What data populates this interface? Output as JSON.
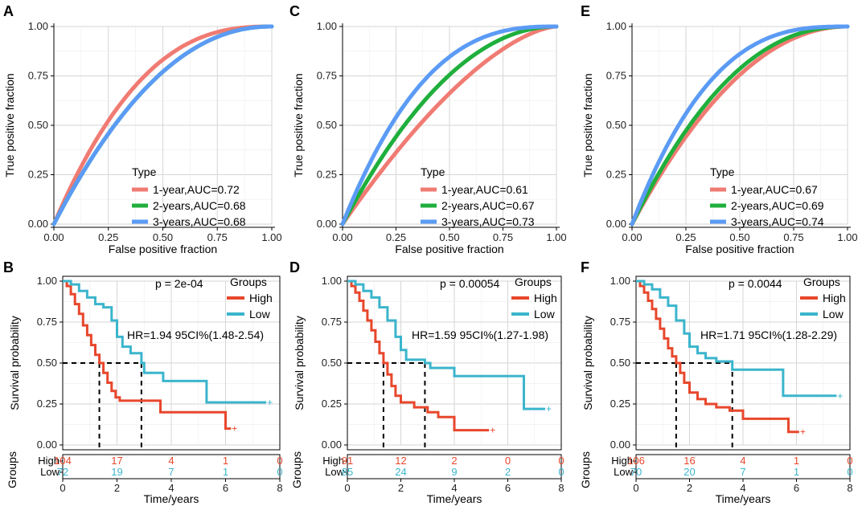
{
  "chart_data": [
    {
      "panel_label": "A",
      "type": "line",
      "subtype": "roc",
      "xlabel": "False positive fraction",
      "ylabel": "True positive fraction",
      "xlim": [
        0,
        1
      ],
      "ylim": [
        0,
        1
      ],
      "ticks": [
        "0.00",
        "0.25",
        "0.50",
        "0.75",
        "1.00"
      ],
      "legend_title": "Type",
      "legend_position": "bottom-right",
      "series": [
        {
          "name": "1-year,AUC=0.72",
          "auc": 0.72,
          "color": "#F07B73"
        },
        {
          "name": "2-years,AUC=0.68",
          "auc": 0.68,
          "color": "#1FAF3C"
        },
        {
          "name": "3-years,AUC=0.68",
          "auc": 0.68,
          "color": "#5B9BF5"
        }
      ]
    },
    {
      "panel_label": "C",
      "type": "line",
      "subtype": "roc",
      "xlabel": "False positive fraction",
      "ylabel": "True positive fraction",
      "xlim": [
        0,
        1
      ],
      "ylim": [
        0,
        1
      ],
      "ticks": [
        "0.00",
        "0.25",
        "0.50",
        "0.75",
        "1.00"
      ],
      "legend_title": "Type",
      "legend_position": "bottom-right",
      "series": [
        {
          "name": "1-year,AUC=0.61",
          "auc": 0.61,
          "color": "#F07B73"
        },
        {
          "name": "2-years,AUC=0.67",
          "auc": 0.67,
          "color": "#1FAF3C"
        },
        {
          "name": "3-years,AUC=0.73",
          "auc": 0.73,
          "color": "#5B9BF5"
        }
      ]
    },
    {
      "panel_label": "E",
      "type": "line",
      "subtype": "roc",
      "xlabel": "False positive fraction",
      "ylabel": "True positive fraction",
      "xlim": [
        0,
        1
      ],
      "ylim": [
        0,
        1
      ],
      "ticks": [
        "0.00",
        "0.25",
        "0.50",
        "0.75",
        "1.00"
      ],
      "legend_title": "Type",
      "legend_position": "bottom-right",
      "series": [
        {
          "name": "1-year,AUC=0.67",
          "auc": 0.67,
          "color": "#F07B73"
        },
        {
          "name": "2-years,AUC=0.69",
          "auc": 0.69,
          "color": "#1FAF3C"
        },
        {
          "name": "3-years,AUC=0.74",
          "auc": 0.74,
          "color": "#5B9BF5"
        }
      ]
    },
    {
      "panel_label": "B",
      "type": "line",
      "subtype": "kaplan-meier",
      "xlabel": "Time/years",
      "ylabel": "Survival probability",
      "xlim": [
        0,
        8
      ],
      "ylim": [
        0,
        1
      ],
      "xticks": [
        "0",
        "2",
        "4",
        "6",
        "8"
      ],
      "yticks": [
        "0.00",
        "0.25",
        "0.50",
        "0.75",
        "1.00"
      ],
      "p_value": "p = 2e-04",
      "hr_text": "HR=1.94 95CI%(1.48-2.54)",
      "legend_title": "Groups",
      "legend_position": "top-right",
      "median": {
        "High": 1.35,
        "Low": 2.9
      },
      "series": [
        {
          "name": "High",
          "color": "#E8472C",
          "points": [
            [
              0,
              1
            ],
            [
              0.15,
              0.97
            ],
            [
              0.3,
              0.92
            ],
            [
              0.45,
              0.86
            ],
            [
              0.6,
              0.8
            ],
            [
              0.75,
              0.73
            ],
            [
              0.9,
              0.67
            ],
            [
              1.05,
              0.61
            ],
            [
              1.2,
              0.55
            ],
            [
              1.35,
              0.5
            ],
            [
              1.5,
              0.44
            ],
            [
              1.65,
              0.38
            ],
            [
              1.8,
              0.33
            ],
            [
              1.95,
              0.29
            ],
            [
              2.1,
              0.27
            ],
            [
              3.6,
              0.27
            ],
            [
              3.6,
              0.2
            ],
            [
              6,
              0.2
            ],
            [
              6,
              0.1
            ],
            [
              6.2,
              0.1
            ]
          ]
        },
        {
          "name": "Low",
          "color": "#3BB5CC",
          "points": [
            [
              0,
              1
            ],
            [
              0.3,
              0.98
            ],
            [
              0.6,
              0.94
            ],
            [
              0.9,
              0.9
            ],
            [
              1.2,
              0.86
            ],
            [
              1.5,
              0.84
            ],
            [
              1.8,
              0.76
            ],
            [
              2.0,
              0.66
            ],
            [
              2.2,
              0.6
            ],
            [
              2.5,
              0.56
            ],
            [
              2.9,
              0.5
            ],
            [
              3.0,
              0.44
            ],
            [
              3.7,
              0.44
            ],
            [
              3.7,
              0.39
            ],
            [
              5.3,
              0.39
            ],
            [
              5.3,
              0.26
            ],
            [
              7.5,
              0.26
            ]
          ]
        }
      ],
      "risk_table": {
        "label": "Groups",
        "rows": [
          {
            "group": "High",
            "color": "#E8472C",
            "values": [
              "104",
              "17",
              "4",
              "1",
              "0"
            ]
          },
          {
            "group": "Low",
            "color": "#3BB5CC",
            "values": [
              "72",
              "19",
              "7",
              "1",
              "0"
            ]
          }
        ]
      }
    },
    {
      "panel_label": "D",
      "type": "line",
      "subtype": "kaplan-meier",
      "xlabel": "Time/years",
      "ylabel": "Survival probability",
      "xlim": [
        0,
        8
      ],
      "ylim": [
        0,
        1
      ],
      "xticks": [
        "0",
        "2",
        "4",
        "6",
        "8"
      ],
      "yticks": [
        "0.00",
        "0.25",
        "0.50",
        "0.75",
        "1.00"
      ],
      "p_value": "p = 0.00054",
      "hr_text": "HR=1.59 95CI%(1.27-1.98)",
      "legend_title": "Groups",
      "legend_position": "top-right",
      "median": {
        "High": 1.35,
        "Low": 2.9
      },
      "series": [
        {
          "name": "High",
          "color": "#E8472C",
          "points": [
            [
              0,
              1
            ],
            [
              0.15,
              0.97
            ],
            [
              0.3,
              0.93
            ],
            [
              0.45,
              0.88
            ],
            [
              0.6,
              0.82
            ],
            [
              0.75,
              0.76
            ],
            [
              0.9,
              0.7
            ],
            [
              1.05,
              0.63
            ],
            [
              1.2,
              0.56
            ],
            [
              1.35,
              0.5
            ],
            [
              1.5,
              0.43
            ],
            [
              1.65,
              0.36
            ],
            [
              1.8,
              0.3
            ],
            [
              2.0,
              0.26
            ],
            [
              2.5,
              0.23
            ],
            [
              3.0,
              0.2
            ],
            [
              3.4,
              0.17
            ],
            [
              4.0,
              0.17
            ],
            [
              4.0,
              0.09
            ],
            [
              5.3,
              0.09
            ]
          ]
        },
        {
          "name": "Low",
          "color": "#3BB5CC",
          "points": [
            [
              0,
              1
            ],
            [
              0.3,
              0.98
            ],
            [
              0.6,
              0.94
            ],
            [
              0.9,
              0.9
            ],
            [
              1.2,
              0.84
            ],
            [
              1.5,
              0.76
            ],
            [
              1.8,
              0.66
            ],
            [
              2.0,
              0.58
            ],
            [
              2.2,
              0.52
            ],
            [
              2.9,
              0.5
            ],
            [
              3.1,
              0.47
            ],
            [
              4.0,
              0.47
            ],
            [
              4.0,
              0.42
            ],
            [
              6.6,
              0.42
            ],
            [
              6.6,
              0.22
            ],
            [
              7.4,
              0.22
            ]
          ]
        }
      ],
      "risk_table": {
        "label": "Groups",
        "rows": [
          {
            "group": "High",
            "color": "#E8472C",
            "values": [
              "91",
              "12",
              "2",
              "0",
              "0"
            ]
          },
          {
            "group": "Low",
            "color": "#3BB5CC",
            "values": [
              "85",
              "24",
              "9",
              "2",
              "0"
            ]
          }
        ]
      }
    },
    {
      "panel_label": "F",
      "type": "line",
      "subtype": "kaplan-meier",
      "xlabel": "Time/years",
      "ylabel": "Survival probability",
      "xlim": [
        0,
        8
      ],
      "ylim": [
        0,
        1
      ],
      "xticks": [
        "0",
        "2",
        "4",
        "6",
        "8"
      ],
      "yticks": [
        "0.00",
        "0.25",
        "0.50",
        "0.75",
        "1.00"
      ],
      "p_value": "p = 0.0044",
      "hr_text": "HR=1.71 95CI%(1.28-2.29)",
      "legend_title": "Groups",
      "legend_position": "top-right",
      "median": {
        "High": 1.5,
        "Low": 3.6
      },
      "series": [
        {
          "name": "High",
          "color": "#E8472C",
          "points": [
            [
              0,
              1
            ],
            [
              0.15,
              0.97
            ],
            [
              0.3,
              0.93
            ],
            [
              0.45,
              0.88
            ],
            [
              0.6,
              0.83
            ],
            [
              0.75,
              0.77
            ],
            [
              0.9,
              0.71
            ],
            [
              1.05,
              0.65
            ],
            [
              1.2,
              0.59
            ],
            [
              1.35,
              0.54
            ],
            [
              1.5,
              0.5
            ],
            [
              1.65,
              0.44
            ],
            [
              1.8,
              0.38
            ],
            [
              2.0,
              0.32
            ],
            [
              2.3,
              0.28
            ],
            [
              2.6,
              0.25
            ],
            [
              3.0,
              0.23
            ],
            [
              3.5,
              0.21
            ],
            [
              4.0,
              0.21
            ],
            [
              4.0,
              0.16
            ],
            [
              5.7,
              0.16
            ],
            [
              5.7,
              0.08
            ],
            [
              6.1,
              0.08
            ]
          ]
        },
        {
          "name": "Low",
          "color": "#3BB5CC",
          "points": [
            [
              0,
              1
            ],
            [
              0.3,
              0.98
            ],
            [
              0.6,
              0.95
            ],
            [
              0.9,
              0.9
            ],
            [
              1.2,
              0.85
            ],
            [
              1.5,
              0.76
            ],
            [
              1.8,
              0.68
            ],
            [
              2.0,
              0.6
            ],
            [
              2.3,
              0.56
            ],
            [
              2.6,
              0.53
            ],
            [
              3.0,
              0.51
            ],
            [
              3.6,
              0.51
            ],
            [
              3.6,
              0.46
            ],
            [
              5.5,
              0.46
            ],
            [
              5.5,
              0.3
            ],
            [
              7.5,
              0.3
            ]
          ]
        }
      ],
      "risk_table": {
        "label": "Groups",
        "rows": [
          {
            "group": "High",
            "color": "#E8472C",
            "values": [
              "106",
              "16",
              "4",
              "1",
              "0"
            ]
          },
          {
            "group": "Low",
            "color": "#3BB5CC",
            "values": [
              "70",
              "20",
              "7",
              "1",
              "0"
            ]
          }
        ]
      }
    }
  ]
}
